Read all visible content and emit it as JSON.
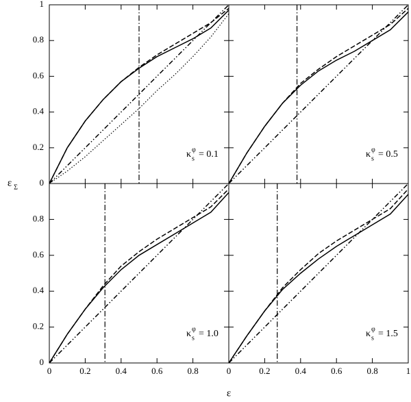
{
  "ylabel": {
    "text": "ε",
    "sub": "Σ"
  },
  "xlabel": "ε",
  "chart_data": [
    {
      "type": "line",
      "label": {
        "symbol": "κ",
        "sup": "φ",
        "sub": "s",
        "text": "= 0.1"
      },
      "x": [
        0,
        0.1,
        0.2,
        0.3,
        0.4,
        0.5,
        0.6,
        0.7,
        0.8,
        0.9,
        1
      ],
      "xlim": [
        0,
        1
      ],
      "ylim": [
        0,
        1
      ],
      "xticks": [
        0,
        0.2,
        0.4,
        0.6,
        0.8
      ],
      "yticks": [
        0,
        0.2,
        0.4,
        0.6,
        0.8,
        1
      ],
      "vline": 0.5,
      "series": [
        {
          "style": "solid",
          "color": "#000000",
          "values": [
            0,
            0.2,
            0.35,
            0.47,
            0.57,
            0.645,
            0.71,
            0.76,
            0.81,
            0.87,
            0.97
          ]
        },
        {
          "style": "dashed",
          "color": "#000000",
          "values": [
            0,
            0.2,
            0.35,
            0.47,
            0.57,
            0.65,
            0.72,
            0.78,
            0.84,
            0.9,
            0.98
          ]
        },
        {
          "style": "dotted",
          "color": "#000000",
          "values": [
            0,
            0.07,
            0.15,
            0.24,
            0.33,
            0.42,
            0.52,
            0.61,
            0.71,
            0.82,
            0.95
          ]
        },
        {
          "style": "dashdotdot",
          "color": "#000000",
          "values": [
            0,
            0.1,
            0.2,
            0.3,
            0.4,
            0.5,
            0.6,
            0.7,
            0.8,
            0.9,
            1
          ]
        }
      ]
    },
    {
      "type": "line",
      "label": {
        "symbol": "κ",
        "sup": "φ",
        "sub": "s",
        "text": "= 0.5"
      },
      "x": [
        0,
        0.1,
        0.2,
        0.3,
        0.4,
        0.5,
        0.6,
        0.7,
        0.8,
        0.9,
        1
      ],
      "xlim": [
        0,
        1
      ],
      "ylim": [
        0,
        1
      ],
      "xticks": [
        0,
        0.2,
        0.4,
        0.6,
        0.8,
        1
      ],
      "yticks": [
        0,
        0.2,
        0.4,
        0.6,
        0.8,
        1
      ],
      "vline": 0.38,
      "series": [
        {
          "style": "solid",
          "color": "#000000",
          "values": [
            0,
            0.17,
            0.32,
            0.45,
            0.55,
            0.63,
            0.69,
            0.74,
            0.8,
            0.86,
            0.96
          ]
        },
        {
          "style": "dashed",
          "color": "#000000",
          "values": [
            0,
            0.17,
            0.32,
            0.45,
            0.56,
            0.64,
            0.71,
            0.77,
            0.83,
            0.89,
            0.98
          ]
        },
        {
          "style": "dashdotdot",
          "color": "#000000",
          "values": [
            0,
            0.1,
            0.2,
            0.3,
            0.4,
            0.5,
            0.6,
            0.7,
            0.8,
            0.9,
            1
          ]
        }
      ]
    },
    {
      "type": "line",
      "label": {
        "symbol": "κ",
        "sup": "φ",
        "sub": "s",
        "text": "= 1.0"
      },
      "x": [
        0,
        0.1,
        0.2,
        0.3,
        0.4,
        0.5,
        0.6,
        0.7,
        0.8,
        0.9,
        1
      ],
      "xlim": [
        0,
        1
      ],
      "ylim": [
        0,
        1
      ],
      "xticks": [
        0,
        0.2,
        0.4,
        0.6,
        0.8
      ],
      "yticks": [
        0,
        0.2,
        0.4,
        0.6,
        0.8
      ],
      "vline": 0.31,
      "series": [
        {
          "style": "solid",
          "color": "#000000",
          "values": [
            0,
            0.16,
            0.3,
            0.42,
            0.52,
            0.6,
            0.66,
            0.72,
            0.78,
            0.84,
            0.95
          ]
        },
        {
          "style": "dashed",
          "color": "#000000",
          "values": [
            0,
            0.16,
            0.3,
            0.43,
            0.54,
            0.62,
            0.69,
            0.75,
            0.81,
            0.87,
            0.97
          ]
        },
        {
          "style": "dashdotdot",
          "color": "#000000",
          "values": [
            0,
            0.1,
            0.2,
            0.3,
            0.4,
            0.5,
            0.6,
            0.7,
            0.8,
            0.9,
            1
          ]
        }
      ]
    },
    {
      "type": "line",
      "label": {
        "symbol": "κ",
        "sup": "φ",
        "sub": "s",
        "text": "= 1.5"
      },
      "x": [
        0,
        0.1,
        0.2,
        0.3,
        0.4,
        0.5,
        0.6,
        0.7,
        0.8,
        0.9,
        1
      ],
      "xlim": [
        0,
        1
      ],
      "ylim": [
        0,
        1
      ],
      "xticks": [
        0,
        0.2,
        0.4,
        0.6,
        0.8,
        1
      ],
      "yticks": [
        0,
        0.2,
        0.4,
        0.6,
        0.8,
        1
      ],
      "vline": 0.27,
      "series": [
        {
          "style": "solid",
          "color": "#000000",
          "values": [
            0,
            0.15,
            0.29,
            0.41,
            0.5,
            0.58,
            0.65,
            0.71,
            0.77,
            0.83,
            0.94
          ]
        },
        {
          "style": "dashed",
          "color": "#000000",
          "values": [
            0,
            0.15,
            0.29,
            0.42,
            0.52,
            0.61,
            0.68,
            0.74,
            0.8,
            0.86,
            0.97
          ]
        },
        {
          "style": "dashdotdot",
          "color": "#000000",
          "values": [
            0,
            0.1,
            0.2,
            0.3,
            0.4,
            0.5,
            0.6,
            0.7,
            0.8,
            0.9,
            1
          ]
        }
      ]
    }
  ]
}
